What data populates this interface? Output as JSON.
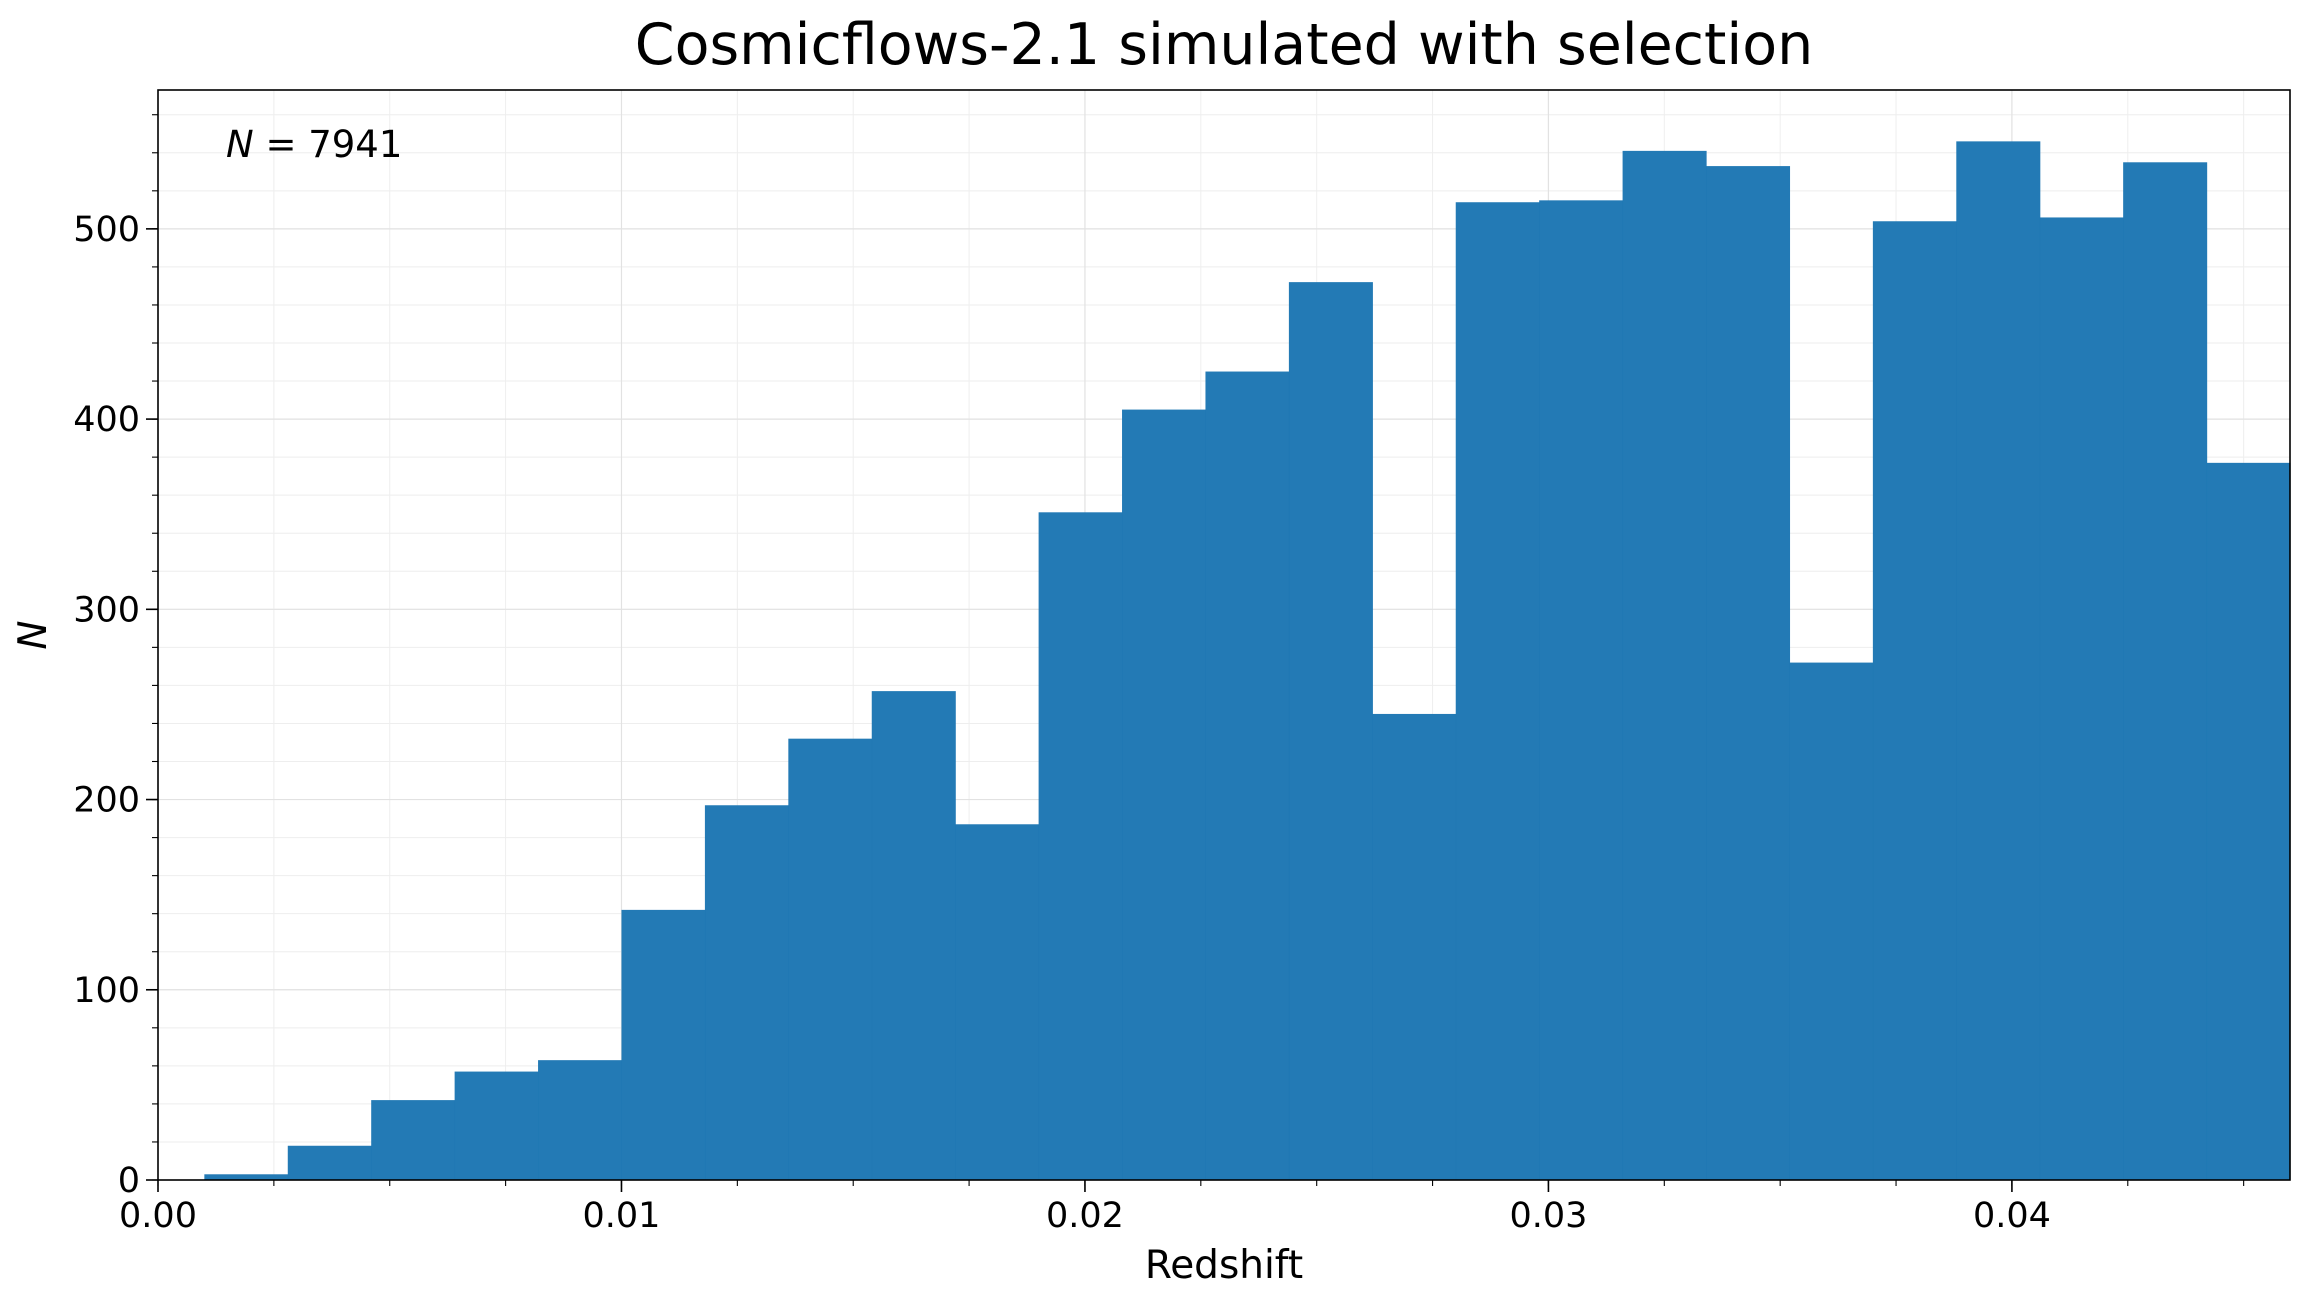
{
  "chart_data": {
    "type": "bar",
    "title": "Cosmicflows-2.1 simulated with selection",
    "xlabel": "Redshift",
    "ylabel": "N",
    "annotation": {
      "symbol": "N",
      "text": " = 7941"
    },
    "xlim": [
      0.0,
      0.046
    ],
    "ylim": [
      0,
      573
    ],
    "x_ticks": [
      "0.00",
      "0.01",
      "0.02",
      "0.03",
      "0.04"
    ],
    "x_tick_values": [
      0.0,
      0.01,
      0.02,
      0.03,
      0.04
    ],
    "y_ticks": [
      "0",
      "100",
      "200",
      "300",
      "400",
      "500"
    ],
    "y_tick_values": [
      0,
      100,
      200,
      300,
      400,
      500
    ],
    "grid": true,
    "bar_color": "#1f77b4",
    "bin_edges": [
      0.001,
      0.0028,
      0.0046,
      0.0064,
      0.0082,
      0.01,
      0.0118,
      0.0136,
      0.0154,
      0.0172,
      0.019,
      0.0208,
      0.0226,
      0.0244,
      0.0262,
      0.028,
      0.0298,
      0.0316,
      0.0334,
      0.0352,
      0.037,
      0.0388,
      0.0406,
      0.0424,
      0.0442,
      0.046
    ],
    "values": [
      3,
      18,
      42,
      57,
      63,
      142,
      197,
      232,
      257,
      187,
      351,
      405,
      425,
      472,
      245,
      514,
      515,
      541,
      533,
      272,
      504,
      546,
      506,
      535,
      377
    ]
  }
}
